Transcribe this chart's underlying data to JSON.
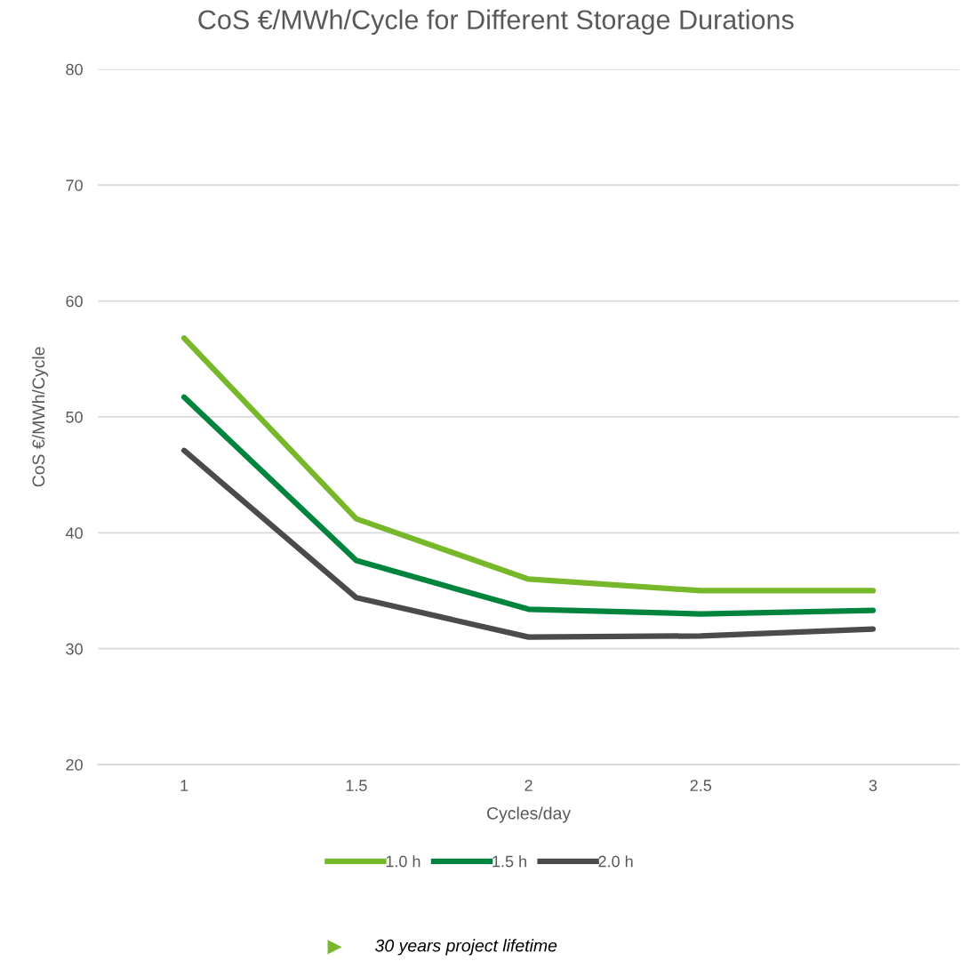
{
  "chart_data": {
    "type": "line",
    "title": "CoS €/MWh/Cycle for Different Storage Durations",
    "xlabel": "Cycles/day",
    "ylabel": "CoS €/MWh/Cycle",
    "categories": [
      "1",
      "1.5",
      "2",
      "2.5",
      "3"
    ],
    "series": [
      {
        "name": "1.0 h",
        "color": "#76b82a",
        "values": [
          56.8,
          41.2,
          36.0,
          35.0,
          35.0
        ]
      },
      {
        "name": "1.5 h",
        "color": "#00843d",
        "values": [
          51.7,
          37.6,
          33.4,
          33.0,
          33.3
        ]
      },
      {
        "name": "2.0 h",
        "color": "#4b4b4d",
        "values": [
          47.1,
          34.4,
          31.0,
          31.1,
          31.7
        ]
      }
    ],
    "ylim": [
      20,
      80
    ],
    "yticks": [
      20,
      30,
      40,
      50,
      60,
      70,
      80
    ],
    "grid": "y",
    "legend": "bottom",
    "marker": "none",
    "line_style": "solid",
    "annotations": [
      "30 years project lifetime"
    ]
  }
}
